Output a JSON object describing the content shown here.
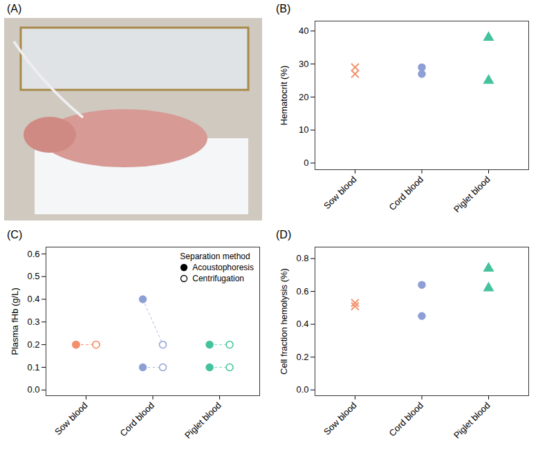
{
  "chart_data": [
    {
      "type": "image",
      "panel": "(A)"
    },
    {
      "type": "scatter",
      "panel": "(B)",
      "y_label": "Hematocrit (%)",
      "ylim": [
        -2,
        43
      ],
      "yticks": [
        0,
        10,
        20,
        30,
        40
      ],
      "series": [
        {
          "name": "Sow blood",
          "color": "#f2906b",
          "marker": "times",
          "values": [
            29,
            27
          ]
        },
        {
          "name": "Cord blood",
          "color": "#8e9fd6",
          "marker": "circle",
          "values": [
            29,
            27
          ]
        },
        {
          "name": "Piglet blood",
          "color": "#44c29d",
          "marker": "triangle",
          "values": [
            38,
            25
          ]
        }
      ]
    },
    {
      "type": "paired_scatter",
      "panel": "(C)",
      "y_label": "Plasma fHb (g/L)",
      "ylim": [
        -0.025,
        0.63
      ],
      "yticks": [
        {
          "value": 0,
          "label": "0.0"
        },
        {
          "value": 0.1,
          "label": "0.1"
        },
        {
          "value": 0.2,
          "label": "0.2"
        },
        {
          "value": 0.3,
          "label": "0.3"
        },
        {
          "value": 0.4,
          "label": "0.4"
        },
        {
          "value": 0.5,
          "label": "0.5"
        },
        {
          "value": 0.6,
          "label": "0.6"
        }
      ],
      "categories": [
        "Sow blood",
        "Cord blood",
        "Piglet blood"
      ],
      "colors": [
        "#f2906b",
        "#8e9fd6",
        "#44c29d"
      ],
      "legend": "top-right",
      "legend_title": "Separation method",
      "line_style": "dashed",
      "series": [
        {
          "name": "Acoustophoresis",
          "marker": "filled",
          "values": [
            [
              0.2,
              0.2
            ],
            [
              0.4,
              0.1
            ],
            [
              0.2,
              0.1
            ]
          ]
        },
        {
          "name": "Centrifugation",
          "marker": "open",
          "values": [
            [
              0.2,
              0.2
            ],
            [
              0.2,
              0.1
            ],
            [
              0.2,
              0.1
            ]
          ]
        }
      ]
    },
    {
      "type": "scatter",
      "panel": "(D)",
      "y_label": "Cell fraction hemolysis (%)",
      "ylim": [
        -0.035,
        0.87
      ],
      "yticks": [
        {
          "value": 0,
          "label": "0.0"
        },
        {
          "value": 0.2,
          "label": "0.2"
        },
        {
          "value": 0.4,
          "label": "0.4"
        },
        {
          "value": 0.6,
          "label": "0.6"
        },
        {
          "value": 0.8,
          "label": "0.8"
        }
      ],
      "series": [
        {
          "name": "Sow blood",
          "color": "#f2906b",
          "marker": "times",
          "values": [
            0.53,
            0.51
          ]
        },
        {
          "name": "Cord blood",
          "color": "#8e9fd6",
          "marker": "circle",
          "values": [
            0.64,
            0.45
          ]
        },
        {
          "name": "Piglet blood",
          "color": "#44c29d",
          "marker": "triangle",
          "values": [
            0.74,
            0.62
          ]
        }
      ]
    }
  ]
}
